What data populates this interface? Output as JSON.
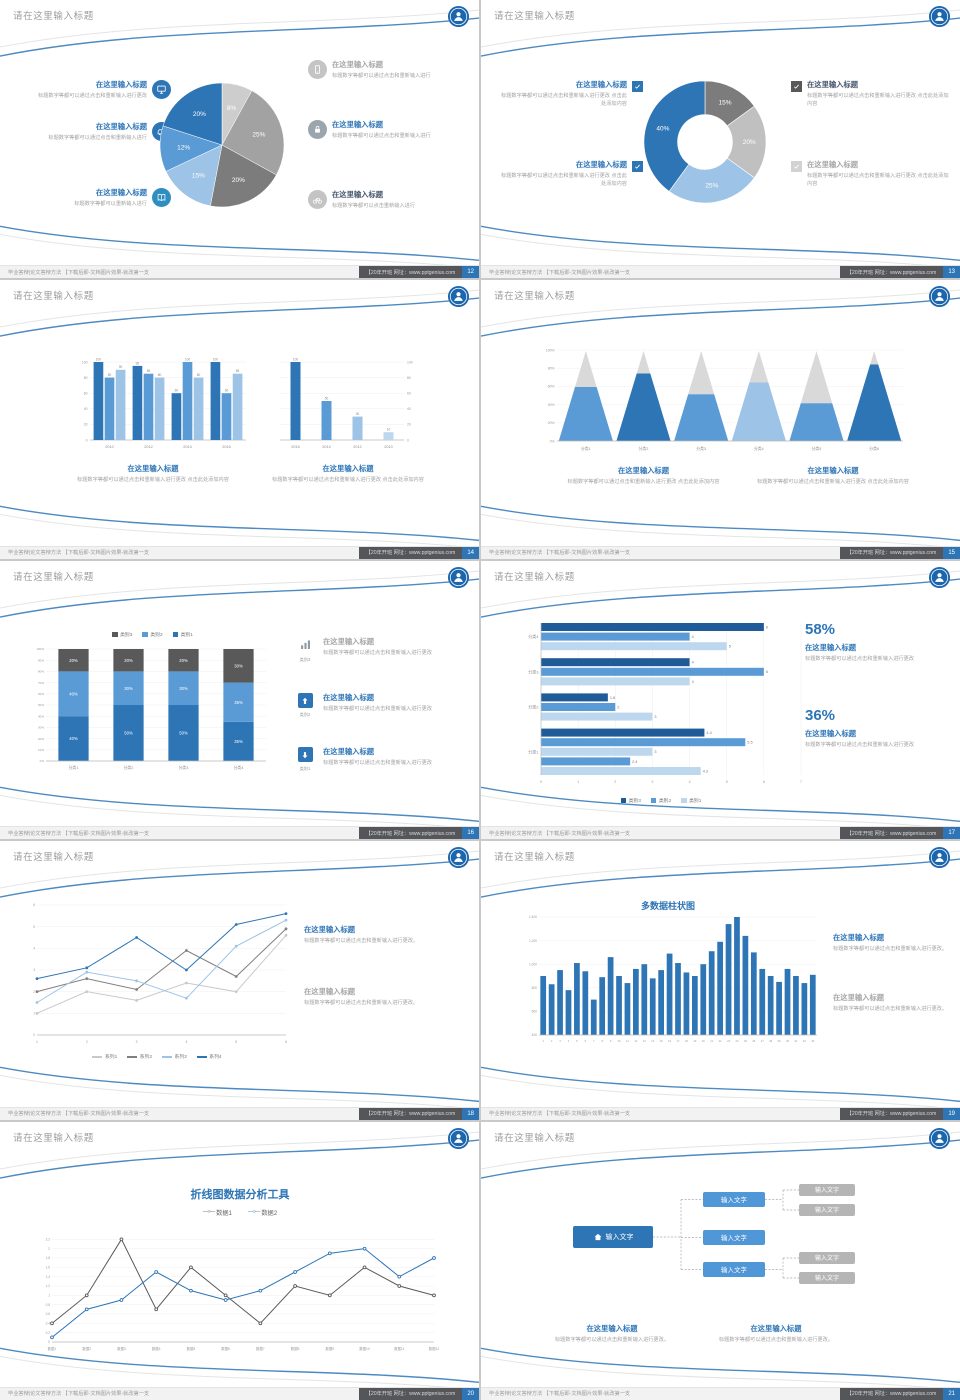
{
  "common": {
    "slide_title": "请在这里输入标题",
    "footer_left": "毕业答辩|论文答辩方法 【下载后即-文档图片效果-就改第一支",
    "footer_brand": "【20年开班 网址：www.pptgenius.com"
  },
  "slides": {
    "s1": {
      "page": "12",
      "items_left": [
        {
          "title": "在这里输入标题",
          "text": "标题数字等都可以通过点击和重新输入进行更改",
          "icon_bg": "#2e75b6"
        },
        {
          "title": "在这里输入标题",
          "text": "标题数字等都可以通过点击和重新输入进行",
          "icon_bg": "#2e75b6"
        },
        {
          "title": "在这里输入标题",
          "text": "标题数字等都可以重新输入进行",
          "icon_bg": "#2e8ec0"
        }
      ],
      "items_right": [
        {
          "title": "在这里输入标题",
          "text": "标题数字等都可以通过点击和重新输入进行",
          "icon_bg": "#c4c4c4"
        },
        {
          "title": "在这里输入标题",
          "text": "标题数字等都可以通过点击和重新输入进行",
          "icon_bg": "#9aa5ae"
        },
        {
          "title": "在这里输入标题",
          "text": "标题数字等都可以点击重新输入进行",
          "icon_bg": "#c4c4c4"
        }
      ],
      "chart": {
        "type": "pie",
        "values": [
          8,
          25,
          20,
          15,
          12,
          20
        ],
        "labels": [
          "8%",
          "25%",
          "20%",
          "15%",
          "12%",
          "20%"
        ],
        "colors": [
          "#cdcdcd",
          "#a2a2a2",
          "#7c7c7c",
          "#9dc3e6",
          "#5b9bd5",
          "#2e75b6"
        ]
      }
    },
    "s2": {
      "page": "13",
      "items_left": [
        {
          "title": "在这里输入标题",
          "text": "标题数字等都可以通过点击和重新输入进行更改 点击此处添加内容",
          "check": "#2e75b6"
        },
        {
          "title": "在这里输入标题",
          "text": "标题数字等都可以通过点击和重新输入进行更改 点击此处添加内容",
          "check": "#2e75b6"
        }
      ],
      "items_right": [
        {
          "title": "在这里输入标题",
          "text": "标题数字等都可以通过点击和重新输入进行更改 点击此处添加内容",
          "check": "#595959"
        },
        {
          "title": "在这里输入标题",
          "text": "标题数字等都可以通过点击和重新输入进行更改 点击此处添加内容",
          "check": "#d2d2d2"
        }
      ],
      "chart": {
        "type": "donut",
        "values": [
          15,
          20,
          25,
          40
        ],
        "labels": [
          "15%",
          "20%",
          "25%",
          "40%"
        ],
        "colors": [
          "#7c7c7c",
          "#c0c0c0",
          "#9dc3e6",
          "#2e75b6"
        ]
      }
    },
    "s3": {
      "page": "14",
      "chart_left": {
        "type": "vbars",
        "ymax": 100,
        "yticks": [
          0,
          20,
          40,
          60,
          80,
          100
        ],
        "colors": [
          "#2e75b6",
          "#5b9bd5",
          "#9dc3e6"
        ],
        "show_values": true,
        "groups": [
          {
            "name": "2010",
            "values": [
              100,
              80,
              90
            ]
          },
          {
            "name": "2012",
            "values": [
              95,
              85,
              80
            ]
          },
          {
            "name": "2014",
            "values": [
              60,
              100,
              80
            ]
          },
          {
            "name": "2016",
            "values": [
              100,
              60,
              85
            ]
          }
        ]
      },
      "chart_right": {
        "type": "vbars",
        "axis": "right",
        "color_by": "group",
        "ymax": 100,
        "yticks": [
          0,
          20,
          40,
          60,
          80,
          100
        ],
        "colors": [
          "#2e75b6",
          "#5b9bd5",
          "#9dc3e6",
          "#bdd7ee"
        ],
        "show_values": true,
        "groups": [
          {
            "name": "2016",
            "values": [
              100
            ]
          },
          {
            "name": "2014",
            "values": [
              50
            ]
          },
          {
            "name": "2012",
            "values": [
              30
            ]
          },
          {
            "name": "2010",
            "values": [
              10
            ]
          }
        ]
      },
      "blocks": [
        {
          "title": "在这里输入标题",
          "text": "标题数字等都可以通过点击和重新输入进行更改 点击此处添加内容"
        },
        {
          "title": "在这里输入标题",
          "text": "标题数字等都可以通过点击和重新输入进行更改 点击此处添加内容"
        }
      ]
    },
    "s4": {
      "page": "15",
      "chart": {
        "type": "pyramid",
        "yticks": [
          "0%",
          "20%",
          "40%",
          "60%",
          "80%",
          "100%"
        ],
        "categories": [
          "分类1",
          "分类2",
          "分类3",
          "分类4",
          "分类5",
          "分类6"
        ],
        "fractions": [
          0.6,
          0.75,
          0.52,
          0.65,
          0.42,
          0.85
        ],
        "colors": [
          "#5b9bd5",
          "#2e75b6",
          "#5b9bd5",
          "#9dc3e6",
          "#5b9bd5",
          "#2e75b6"
        ],
        "top_color": "#d9d9d9"
      },
      "blocks": [
        {
          "title": "在这里输入标题",
          "text": "标题数字等都可以通过点击和重新输入进行更改 点击此处添加内容"
        },
        {
          "title": "在这里输入标题",
          "text": "标题数字等都可以通过点击和重新输入进行更改 点击此处添加内容"
        }
      ]
    },
    "s5": {
      "page": "16",
      "legend": [
        {
          "label": "类别3",
          "color": "#595959"
        },
        {
          "label": "类别2",
          "color": "#5b9bd5"
        },
        {
          "label": "类别1",
          "color": "#2e75b6"
        }
      ],
      "chart": {
        "type": "stack",
        "yticks": [
          0,
          10,
          20,
          30,
          40,
          50,
          60,
          70,
          80,
          90,
          100
        ],
        "categories": [
          "分类1",
          "分类2",
          "分类3",
          "分类4"
        ],
        "series": [
          {
            "name": "类别1",
            "color": "#2e75b6",
            "values": [
              40,
              50,
              50,
              35
            ]
          },
          {
            "name": "类别2",
            "color": "#5b9bd5",
            "values": [
              40,
              30,
              30,
              35
            ]
          },
          {
            "name": "类别3",
            "color": "#595959",
            "values": [
              20,
              20,
              20,
              30
            ]
          }
        ]
      },
      "rows": [
        {
          "tag": "类别3",
          "title": "在这里输入标题",
          "text": "标题数字等都可以通过点击和重新输入进行更改"
        },
        {
          "tag": "类别2",
          "title": "在这里输入标题",
          "text": "标题数字等都可以通过点击和重新输入进行更改"
        },
        {
          "tag": "类别1",
          "title": "在这里输入标题",
          "text": "标题数字等都可以通过点击和重新输入进行更改"
        }
      ]
    },
    "s6": {
      "page": "17",
      "chart": {
        "type": "hbar",
        "xmax": 7,
        "xticks": [
          0,
          1,
          2,
          3,
          4,
          5,
          6,
          7
        ],
        "groups": [
          {
            "name": "分类4",
            "bars": [
              {
                "v": 6,
                "c": "#1f5b99"
              },
              {
                "v": 4,
                "c": "#5b9bd5"
              },
              {
                "v": 5,
                "c": "#bdd7ee"
              }
            ]
          },
          {
            "name": "分类3",
            "bars": [
              {
                "v": 4,
                "c": "#1f5b99"
              },
              {
                "v": 6,
                "c": "#5b9bd5"
              },
              {
                "v": 4,
                "c": "#bdd7ee"
              }
            ]
          },
          {
            "name": "分类2",
            "bars": [
              {
                "v": 1.8,
                "c": "#1f5b99"
              },
              {
                "v": 2,
                "c": "#5b9bd5"
              },
              {
                "v": 3,
                "c": "#bdd7ee"
              }
            ]
          },
          {
            "name": "分类1",
            "bars": [
              {
                "v": 4.4,
                "c": "#1f5b99"
              },
              {
                "v": 5.5,
                "c": "#5b9bd5"
              },
              {
                "v": 3,
                "c": "#bdd7ee"
              },
              {
                "v": 2.4,
                "c": "#5b9bd5"
              },
              {
                "v": 4.3,
                "c": "#bdd7ee"
              }
            ]
          }
        ]
      },
      "legend": [
        {
          "label": "类别3",
          "color": "#1f5b99"
        },
        {
          "label": "类别2",
          "color": "#5b9bd5"
        },
        {
          "label": "类别1",
          "color": "#bdd7ee"
        }
      ],
      "stats": [
        {
          "pct": "58%",
          "title": "在这里输入标题",
          "text": "标题数字等都可以通过点击和重新输入进行更改"
        },
        {
          "pct": "36%",
          "title": "在这里输入标题",
          "text": "标题数字等都可以通过点击和重新输入进行更改"
        }
      ]
    },
    "s7": {
      "page": "18",
      "chart": {
        "type": "line",
        "ymax": 6,
        "yticks": [
          0,
          1,
          2,
          3,
          4,
          5,
          6
        ],
        "x_labels": [
          "1",
          "2",
          "3",
          "4",
          "5",
          "6"
        ],
        "series": [
          {
            "name": "系列1",
            "color": "#c9c9c9",
            "values": [
              1,
              2,
              1.6,
              2.4,
              2,
              4.6
            ]
          },
          {
            "name": "系列2",
            "color": "#7f7f7f",
            "values": [
              2,
              2.6,
              2.1,
              3.9,
              2.7,
              4.9
            ]
          },
          {
            "name": "系列3",
            "color": "#9dc3e6",
            "values": [
              1.5,
              2.9,
              2.5,
              1.7,
              4.1,
              5.3
            ]
          },
          {
            "name": "系列4",
            "color": "#2e75b6",
            "values": [
              2.6,
              3.1,
              4.5,
              3,
              5.1,
              5.6
            ]
          }
        ]
      },
      "legend": [
        {
          "label": "系列1",
          "color": "#c9c9c9"
        },
        {
          "label": "系列2",
          "color": "#7f7f7f"
        },
        {
          "label": "系列3",
          "color": "#9dc3e6"
        },
        {
          "label": "系列4",
          "color": "#2e75b6"
        }
      ],
      "blocks": [
        {
          "title": "在这里输入标题",
          "text": "标题数字等都可以通过点击和重新输入进行更改。"
        },
        {
          "title": "在这里输入标题",
          "text": "标题数字等都可以通过点击和重新输入进行更改。"
        }
      ]
    },
    "s8": {
      "page": "19",
      "title": "多数据柱状图",
      "chart": {
        "type": "cols",
        "ymin": 400,
        "ymax": 1400,
        "yticks": [
          400,
          600,
          800,
          1000,
          1200,
          1400
        ],
        "ytick_labels": [
          "400",
          "600",
          "800",
          "1,000",
          "1,200",
          "1,400"
        ],
        "color": "#2e75b6",
        "values": [
          900,
          830,
          950,
          780,
          1010,
          940,
          700,
          890,
          1060,
          900,
          840,
          960,
          1000,
          880,
          950,
          1090,
          1010,
          930,
          900,
          1000,
          1110,
          1190,
          1340,
          1400,
          1240,
          1100,
          960,
          900,
          850,
          960,
          900,
          840,
          910
        ],
        "x_labels": [
          "1",
          "2",
          "3",
          "4",
          "5",
          "6",
          "7",
          "8",
          "9",
          "10",
          "11",
          "12",
          "13",
          "14",
          "15",
          "16",
          "17",
          "18",
          "19",
          "20",
          "21",
          "22",
          "23",
          "24",
          "25",
          "26",
          "27",
          "28",
          "29",
          "30",
          "31",
          "32",
          "33"
        ]
      },
      "blocks": [
        {
          "title": "在这里输入标题",
          "text": "标题数字等都可以通过点击和重新输入进行更改。"
        },
        {
          "title": "在这里输入标题",
          "text": "标题数字等都可以通过点击和重新输入进行更改。"
        }
      ]
    },
    "s9": {
      "page": "20",
      "title": "折线图数据分析工具",
      "marker": "—○—",
      "legend": [
        {
          "label": "数据1",
          "color": "#595959"
        },
        {
          "label": "数据2",
          "color": "#2e75b6"
        }
      ],
      "chart": {
        "type": "line",
        "marker": "open",
        "mL": 16,
        "ymax": 2.4,
        "yticks": [
          0,
          0.2,
          0.4,
          0.6,
          0.8,
          1,
          1.2,
          1.4,
          1.6,
          1.8,
          2,
          2.2
        ],
        "x_labels": [
          "数据1",
          "数据2",
          "数据3",
          "数据4",
          "数据5",
          "数据6",
          "数据7",
          "数据8",
          "数据9",
          "数据10",
          "数据11",
          "数据12"
        ],
        "series": [
          {
            "name": "数据1",
            "color": "#595959",
            "values": [
              0.4,
              1,
              2.2,
              0.7,
              1.6,
              1,
              0.4,
              1.2,
              1,
              1.6,
              1.2,
              1
            ]
          },
          {
            "name": "数据2",
            "color": "#2e75b6",
            "values": [
              0.1,
              0.7,
              0.9,
              1.5,
              1.1,
              0.9,
              1.1,
              1.5,
              1.9,
              2,
              1.4,
              1.8
            ]
          }
        ]
      }
    },
    "s10": {
      "page": "21",
      "home": "输入文字",
      "mid": [
        "输入文字",
        "输入文字",
        "输入文字"
      ],
      "leaf": [
        "输入文字",
        "输入文字",
        "输入文字",
        "输入文字"
      ],
      "blocks": [
        {
          "title": "在这里输入标题",
          "text": "标题数字等都可以通过点击和重新输入进行更改。"
        },
        {
          "title": "在这里输入标题",
          "text": "标题数字等都可以通过点击和重新输入进行更改。"
        }
      ]
    }
  }
}
